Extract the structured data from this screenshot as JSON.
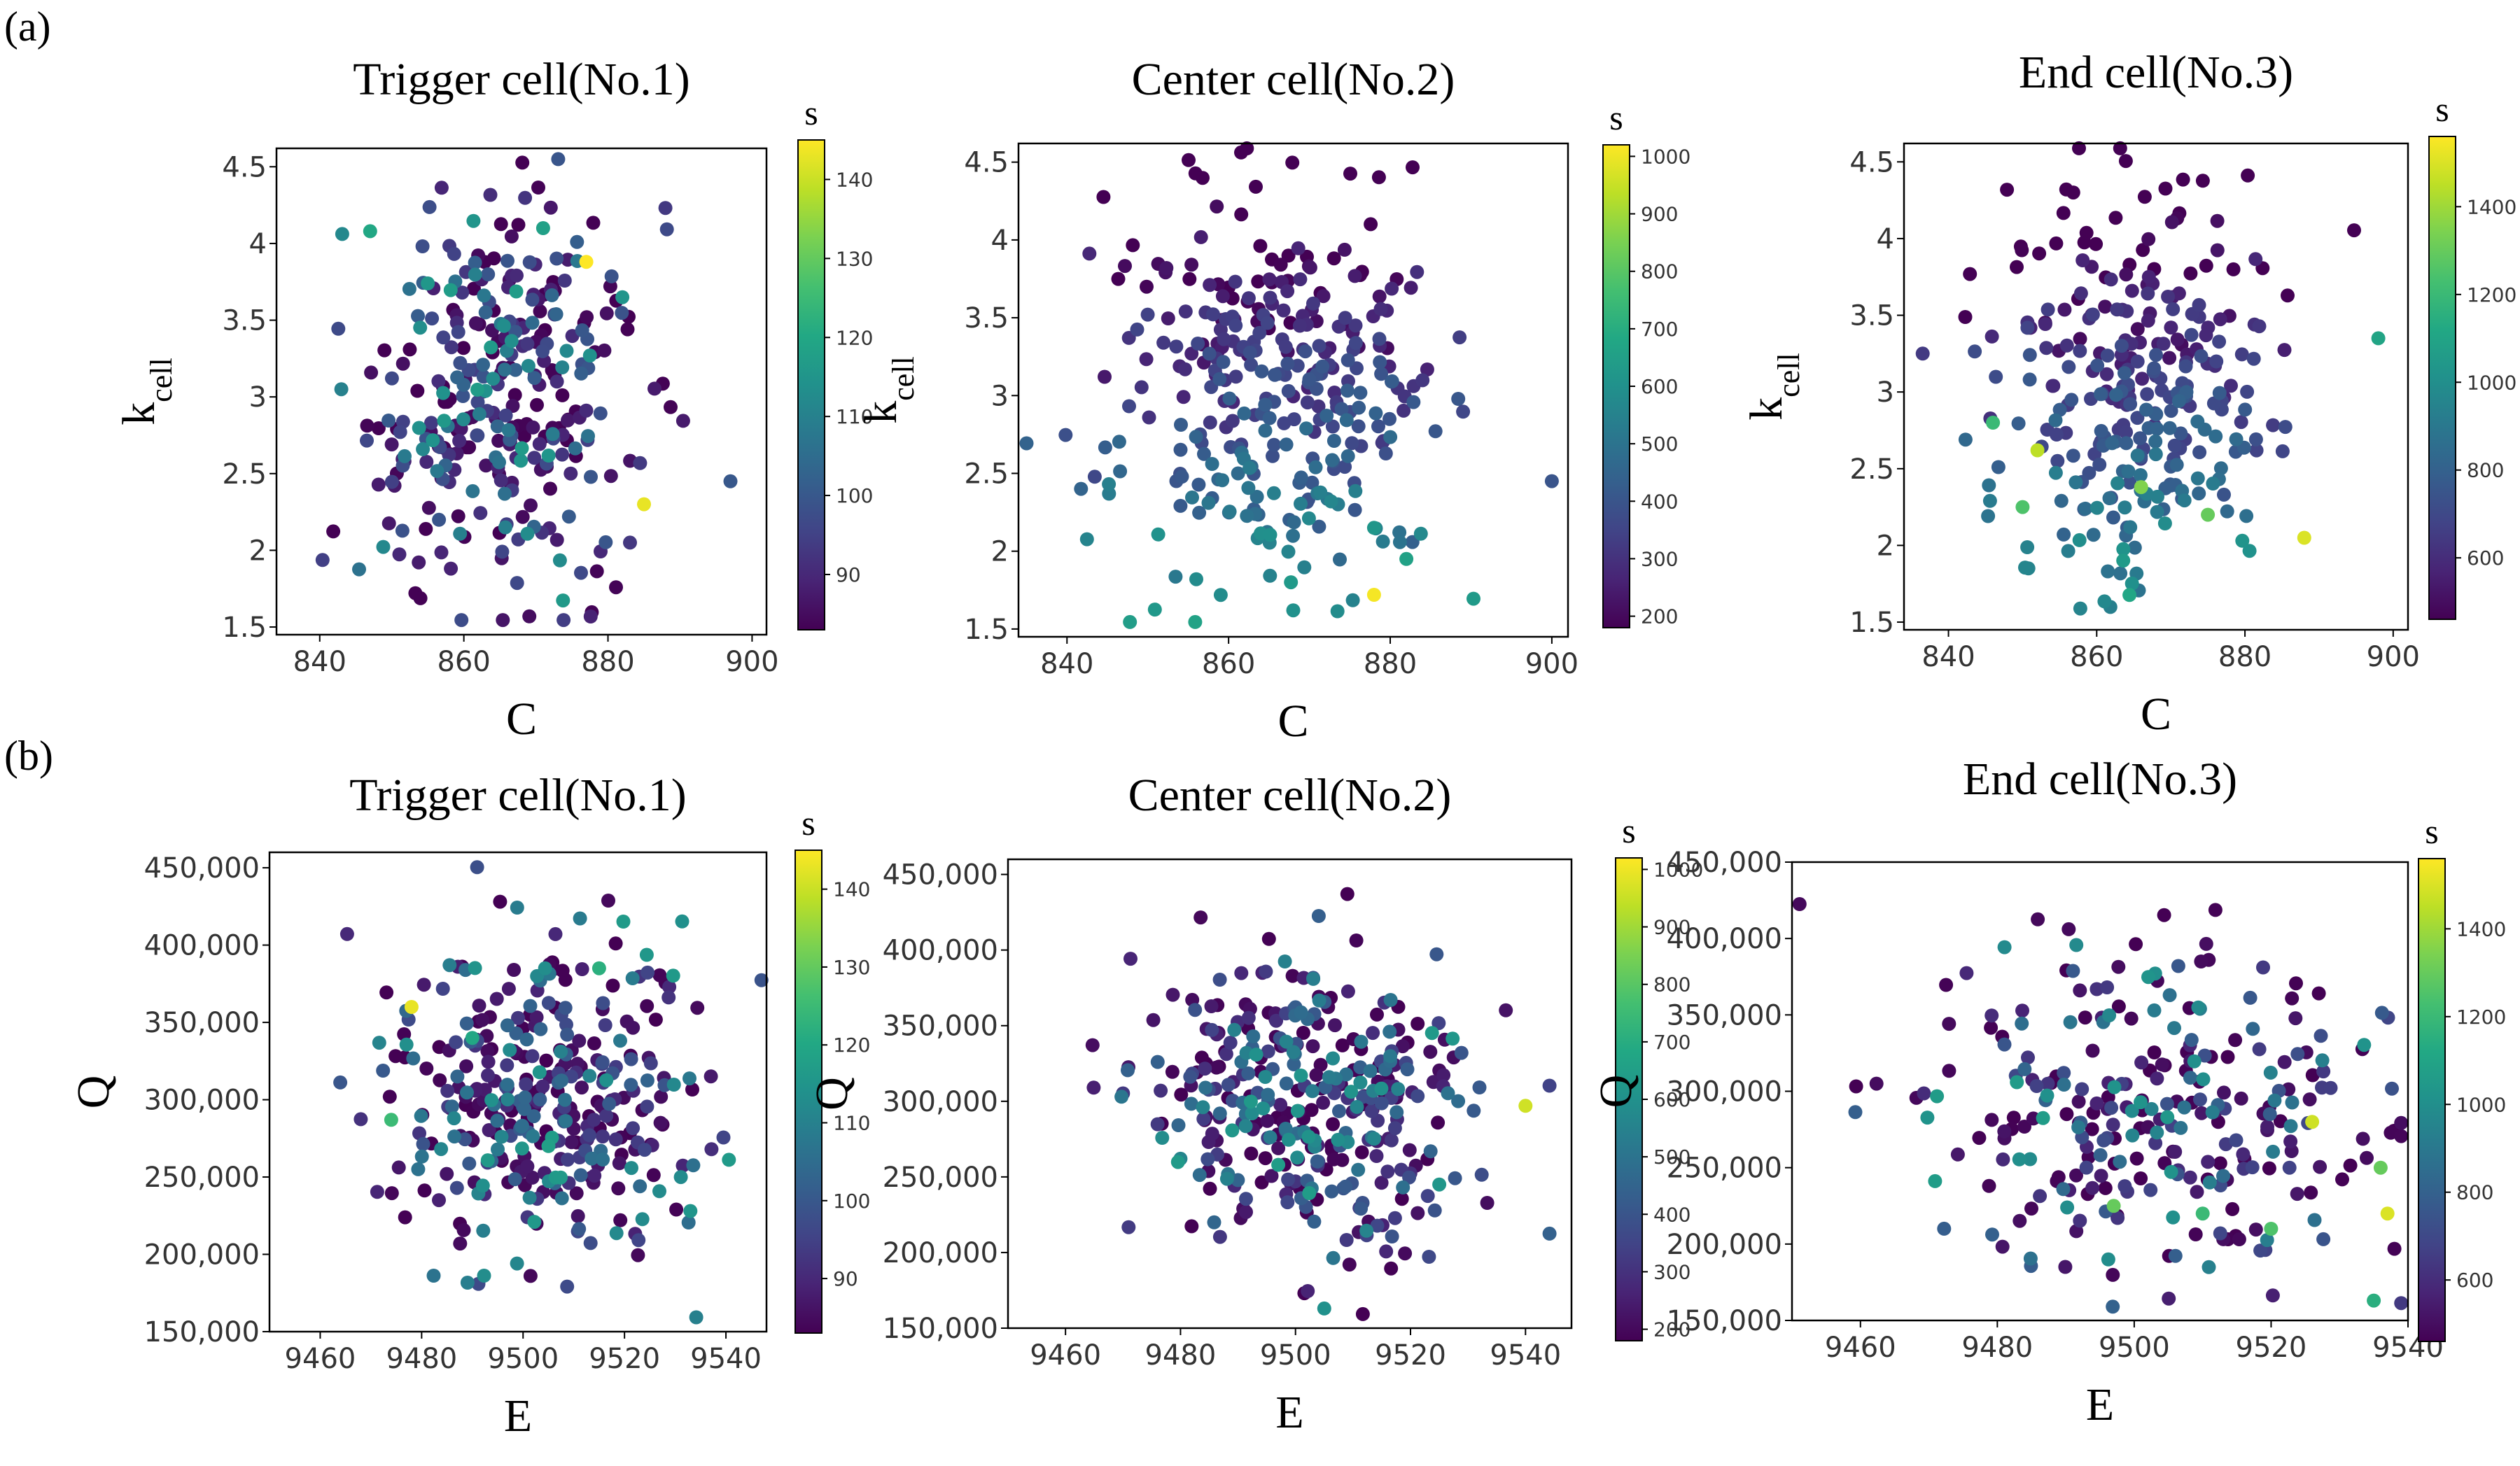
{
  "panel_labels": [
    "(a)",
    "(b)"
  ],
  "colormap": [
    "#440154",
    "#482475",
    "#414487",
    "#355f8d",
    "#2a788e",
    "#21918c",
    "#22a884",
    "#44bf70",
    "#7ad151",
    "#bddf26",
    "#fde725"
  ],
  "chart_data": [
    {
      "type": "scatter",
      "title": "Trigger cell(No.1)",
      "xlabel": "C",
      "ylabel": "k",
      "ylabel_sub": "cell",
      "colorbar_label": "s",
      "xlim": [
        834,
        902
      ],
      "ylim": [
        1.45,
        4.62
      ],
      "xticks": [
        840,
        860,
        880,
        900
      ],
      "yticks": [
        1.5,
        2.0,
        2.5,
        3.0,
        3.5,
        4.0,
        4.5
      ],
      "clim": [
        83,
        145
      ],
      "cticks": [
        90,
        100,
        110,
        120,
        130,
        140
      ],
      "seed": 11,
      "n": 330,
      "cmean": [
        860,
        4.6,
        920
      ],
      "skew": "low",
      "highlights": [
        [
          877,
          3.88,
          145
        ],
        [
          885,
          2.3,
          143
        ],
        [
          847,
          4.08,
          120
        ],
        [
          871,
          4.1,
          118
        ],
        [
          843,
          3.05,
          110
        ],
        [
          897,
          2.45,
          100
        ],
        [
          882,
          3.65,
          115
        ]
      ]
    },
    {
      "type": "scatter",
      "title": "Center cell(No.2)",
      "xlabel": "C",
      "ylabel": "k",
      "ylabel_sub": "cell",
      "colorbar_label": "s",
      "xlim": [
        834,
        902
      ],
      "ylim": [
        1.45,
        4.62
      ],
      "xticks": [
        840,
        860,
        880,
        900
      ],
      "yticks": [
        1.5,
        2.0,
        2.5,
        3.0,
        3.5,
        4.0,
        4.5
      ],
      "clim": [
        180,
        1020
      ],
      "cticks": [
        200,
        300,
        400,
        500,
        600,
        700,
        800,
        900,
        1000
      ],
      "seed": 23,
      "n": 330,
      "cmean": [
        860,
        4.6,
        920
      ],
      "skew": "lowk",
      "highlights": [
        [
          878,
          1.72,
          1010
        ],
        [
          882,
          1.95,
          660
        ],
        [
          868,
          1.62,
          600
        ],
        [
          856,
          1.82,
          580
        ],
        [
          900,
          2.45,
          400
        ],
        [
          878,
          2.15,
          620
        ]
      ]
    },
    {
      "type": "scatter",
      "title": "End cell(No.3)",
      "xlabel": "C",
      "ylabel": "k",
      "ylabel_sub": "cell",
      "colorbar_label": "s",
      "xlim": [
        834,
        902
      ],
      "ylim": [
        1.45,
        4.62
      ],
      "xticks": [
        840,
        860,
        880,
        900
      ],
      "yticks": [
        1.5,
        2.0,
        2.5,
        3.0,
        3.5,
        4.0,
        4.5
      ],
      "clim": [
        460,
        1560
      ],
      "cticks": [
        600,
        800,
        1000,
        1200,
        1400
      ],
      "seed": 37,
      "n": 300,
      "cmean": [
        860,
        4.6,
        920
      ],
      "skew": "lowk",
      "highlights": [
        [
          888,
          2.05,
          1500
        ],
        [
          852,
          2.62,
          1450
        ],
        [
          866,
          2.38,
          1350
        ],
        [
          898,
          3.35,
          1100
        ],
        [
          850,
          2.25,
          1250
        ],
        [
          875,
          2.2,
          1300
        ],
        [
          846,
          2.8,
          1200
        ]
      ]
    },
    {
      "type": "scatter",
      "title": "Trigger cell(No.1)",
      "xlabel": "E",
      "ylabel": "Q",
      "colorbar_label": "s",
      "xlim": [
        9450,
        9548
      ],
      "ylim": [
        150000,
        460000
      ],
      "xticks": [
        9460,
        9480,
        9500,
        9520,
        9540
      ],
      "yticks": [
        150000,
        200000,
        250000,
        300000,
        350000,
        400000,
        450000
      ],
      "clim": [
        83,
        145
      ],
      "cticks": [
        90,
        100,
        110,
        120,
        130,
        140
      ],
      "seed": 41,
      "n": 360,
      "cmean": [
        9500,
        300000
      ],
      "skew": "none",
      "highlights": [
        [
          9478,
          360000,
          143
        ],
        [
          9474,
          287000,
          125
        ],
        [
          9515,
          385000,
          122
        ],
        [
          9533,
          228000,
          115
        ],
        [
          9505,
          270000,
          118
        ],
        [
          9490,
          340000,
          120
        ]
      ]
    },
    {
      "type": "scatter",
      "title": "Center cell(No.2)",
      "xlabel": "E",
      "ylabel": "Q",
      "colorbar_label": "s",
      "xlim": [
        9450,
        9548
      ],
      "ylim": [
        150000,
        460000
      ],
      "xticks": [
        9460,
        9480,
        9500,
        9520,
        9540
      ],
      "yticks": [
        150000,
        200000,
        250000,
        300000,
        350000,
        400000,
        450000
      ],
      "clim": [
        180,
        1020
      ],
      "cticks": [
        200,
        300,
        400,
        500,
        600,
        700,
        800,
        900,
        1000
      ],
      "seed": 53,
      "n": 360,
      "cmean": [
        9500,
        300000
      ],
      "skew": "none",
      "highlights": [
        [
          9540,
          297000,
          960
        ],
        [
          9505,
          163000,
          600
        ],
        [
          9497,
          258000,
          640
        ],
        [
          9480,
          262000,
          560
        ],
        [
          9525,
          245000,
          620
        ],
        [
          9507,
          315000,
          520
        ]
      ]
    },
    {
      "type": "scatter",
      "title": "End cell(No.3)",
      "xlabel": "E",
      "ylabel": "Q",
      "colorbar_label": "s",
      "xlim": [
        9450,
        9540
      ],
      "ylim": [
        150000,
        450000
      ],
      "xticks": [
        9460,
        9480,
        9500,
        9520,
        9540
      ],
      "yticks": [
        150000,
        200000,
        250000,
        300000,
        350000,
        400000,
        450000
      ],
      "clim": [
        460,
        1560
      ],
      "cticks": [
        600,
        800,
        1000,
        1200,
        1400
      ],
      "seed": 67,
      "n": 280,
      "cmean": [
        9500,
        280000
      ],
      "skew": "none",
      "highlights": [
        [
          9537,
          220000,
          1500
        ],
        [
          9526,
          280000,
          1480
        ],
        [
          9535,
          163000,
          1150
        ],
        [
          9536,
          250000,
          1300
        ],
        [
          9520,
          210000,
          1250
        ],
        [
          9510,
          220000,
          1200
        ],
        [
          9497,
          225000,
          1300
        ]
      ]
    }
  ]
}
